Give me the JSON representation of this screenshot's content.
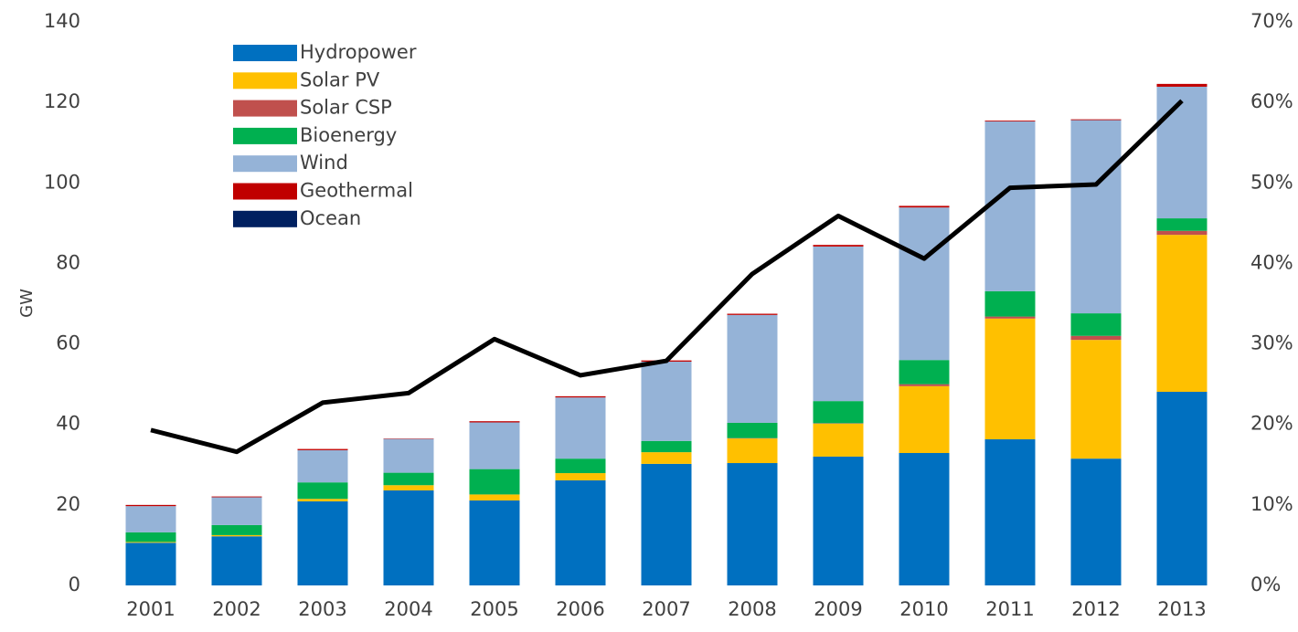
{
  "chart_data": {
    "type": "stacked-bar-line",
    "y_label": "GW",
    "categories": [
      "2001",
      "2002",
      "2003",
      "2004",
      "2005",
      "2006",
      "2007",
      "2008",
      "2009",
      "2010",
      "2011",
      "2012",
      "2013"
    ],
    "series": [
      {
        "name": "Hydropower",
        "color": "#0070c0",
        "values": [
          10.6,
          12.2,
          20.9,
          23.6,
          21.1,
          26.1,
          30.2,
          30.4,
          32.0,
          32.9,
          36.3,
          31.5,
          48.1
        ]
      },
      {
        "name": "Solar PV",
        "color": "#ffc000",
        "values": [
          0.2,
          0.3,
          0.6,
          1.3,
          1.5,
          1.8,
          2.9,
          6.1,
          8.2,
          16.6,
          30.0,
          29.5,
          39.0
        ]
      },
      {
        "name": "Solar CSP",
        "color": "#c0504d",
        "values": [
          0,
          0,
          0,
          0,
          0,
          0,
          0,
          0.1,
          0.1,
          0.5,
          0.5,
          1.0,
          1.0
        ]
      },
      {
        "name": "Bioenergy",
        "color": "#00b050",
        "values": [
          2.4,
          2.5,
          4.1,
          3.1,
          6.3,
          3.6,
          2.8,
          3.8,
          5.5,
          6.0,
          6.3,
          5.6,
          3.1
        ]
      },
      {
        "name": "Wind",
        "color": "#95b3d7",
        "values": [
          6.5,
          6.9,
          8.0,
          8.4,
          11.6,
          15.2,
          19.7,
          26.8,
          38.4,
          37.9,
          42.2,
          48.0,
          32.7
        ]
      },
      {
        "name": "Geothermal",
        "color": "#c00000",
        "values": [
          0.3,
          0.2,
          0.3,
          0.1,
          0.3,
          0.3,
          0.3,
          0.3,
          0.4,
          0.4,
          0.2,
          0.2,
          0.7
        ]
      },
      {
        "name": "Ocean",
        "color": "#002060",
        "values": [
          0,
          0,
          0,
          0,
          0,
          0,
          0,
          0,
          0,
          0,
          0,
          0,
          0
        ]
      }
    ],
    "line": {
      "color": "#000000",
      "axis": "y2",
      "values": [
        19.3,
        16.6,
        22.7,
        23.9,
        30.6,
        26.1,
        27.9,
        38.7,
        45.9,
        40.6,
        49.4,
        49.8,
        60.2
      ]
    },
    "ylim": [
      0,
      140
    ],
    "yticks": [
      0,
      20,
      40,
      60,
      80,
      100,
      120,
      140
    ],
    "y2lim": [
      0,
      70
    ],
    "y2ticks": [
      {
        "value": 0,
        "label": "0%"
      },
      {
        "value": 10,
        "label": "10%"
      },
      {
        "value": 20,
        "label": "20%"
      },
      {
        "value": 30,
        "label": "30%"
      },
      {
        "value": 40,
        "label": "40%"
      },
      {
        "value": 50,
        "label": "50%"
      },
      {
        "value": 60,
        "label": "60%"
      },
      {
        "value": 70,
        "label": "70%"
      }
    ],
    "legend": "upper left"
  }
}
